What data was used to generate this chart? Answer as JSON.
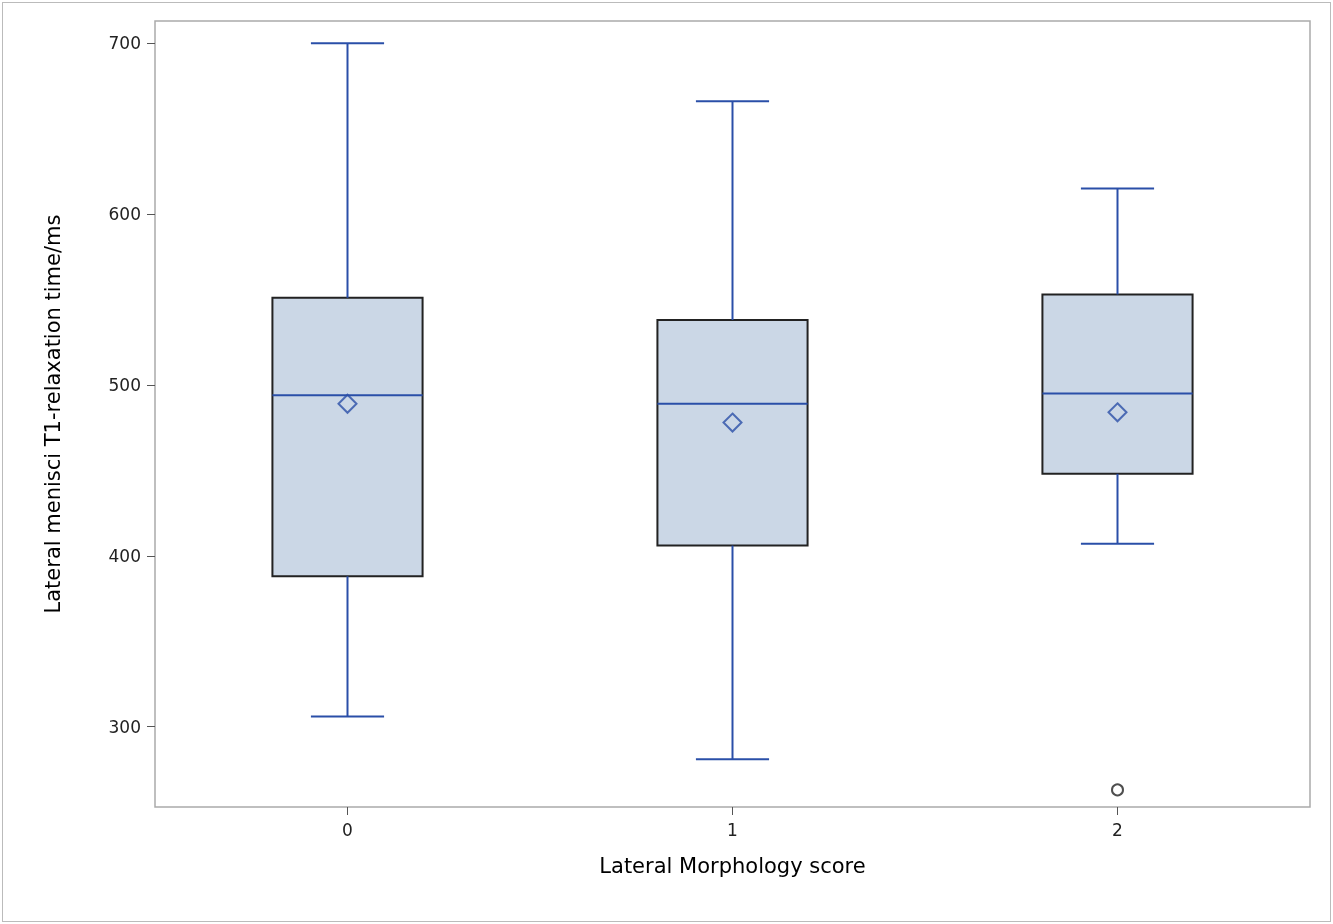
{
  "chart_data": {
    "type": "box",
    "xlabel": "Lateral Morphology score",
    "ylabel": "Lateral menisci T1-relaxation time/ms",
    "categories": [
      "0",
      "1",
      "2"
    ],
    "series": [
      {
        "color": "#cbd7e6",
        "boxes": [
          {
            "low": 306,
            "q1": 388,
            "median": 494,
            "q3": 551,
            "high": 700,
            "mean": 489
          },
          {
            "low": 281,
            "q1": 406,
            "median": 489,
            "q3": 538,
            "high": 666,
            "mean": 478
          },
          {
            "low": 407,
            "q1": 448,
            "median": 495,
            "q3": 553,
            "high": 615,
            "mean": 484,
            "outliers": [
              263
            ]
          }
        ]
      }
    ],
    "ylim": [
      253,
      713
    ],
    "yticks": [
      300,
      400,
      500,
      600,
      700
    ]
  }
}
